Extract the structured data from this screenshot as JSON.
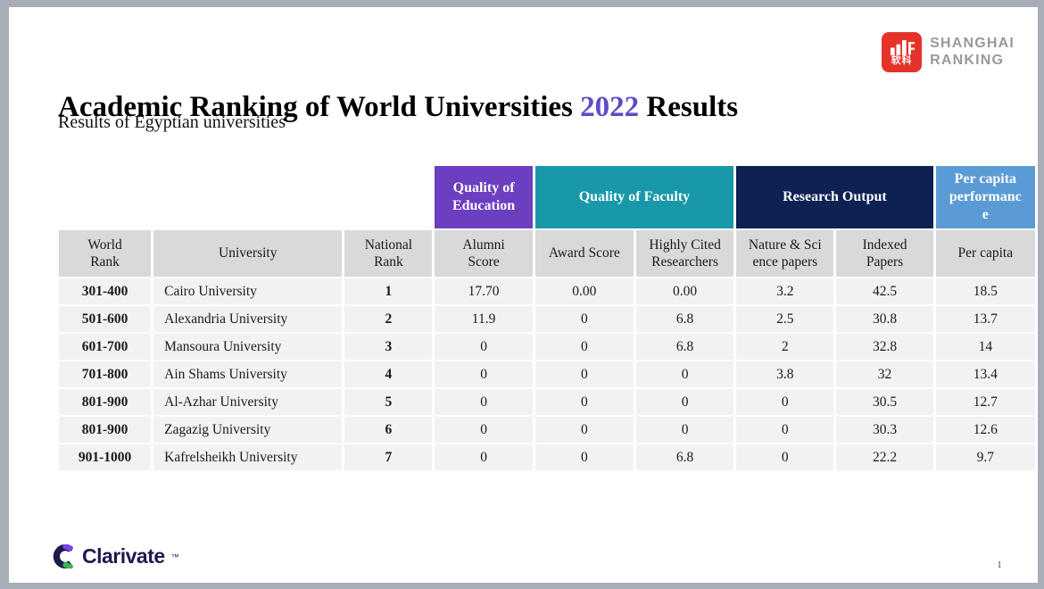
{
  "slide": {
    "title_prefix": "Academic Ranking of World Universities",
    "title_year": "2022",
    "title_suffix": "Results",
    "title_year_color": "#5b4dc9",
    "subtitle": "Results of Egyptian universities",
    "page_number": "1"
  },
  "branding": {
    "shanghai": {
      "line1": "SHANGHAI",
      "line2": "RANKING",
      "badge_text": "软科",
      "badge_color": "#e5332c",
      "text_color": "#97999b"
    },
    "clarivate": {
      "name": "Clarivate",
      "tm": "™",
      "navy": "#1c1a4e",
      "purple": "#7d41f5",
      "green": "#3bb54a"
    }
  },
  "table": {
    "group_headers": [
      {
        "label": "Quality of\nEducation",
        "color": "#6b3fc0",
        "span": 1
      },
      {
        "label": "Quality of Faculty",
        "color": "#1898a8",
        "span": 2
      },
      {
        "label": "Research Output",
        "color": "#0e2152",
        "span": 2
      },
      {
        "label": "Per capita\nperformanc\ne",
        "color": "#5b9bd5",
        "span": 1
      }
    ],
    "columns": [
      "World\nRank",
      "University",
      "National\nRank",
      "Alumni\nScore",
      "Award Score",
      "Highly Cited\nResearchers",
      "Nature & Sci\nence papers",
      "Indexed\nPapers",
      "Per capita"
    ],
    "rows": [
      [
        "301-400",
        "Cairo University",
        "1",
        "17.70",
        "0.00",
        "0.00",
        "3.2",
        "42.5",
        "18.5"
      ],
      [
        "501-600",
        "Alexandria University",
        "2",
        "11.9",
        "0",
        "6.8",
        "2.5",
        "30.8",
        "13.7"
      ],
      [
        "601-700",
        "Mansoura University",
        "3",
        "0",
        "0",
        "6.8",
        "2",
        "32.8",
        "14"
      ],
      [
        "701-800",
        "Ain Shams University",
        "4",
        "0",
        "0",
        "0",
        "3.8",
        "32",
        "13.4"
      ],
      [
        "801-900",
        "Al-Azhar University",
        "5",
        "0",
        "0",
        "0",
        "0",
        "30.5",
        "12.7"
      ],
      [
        "801-900",
        "Zagazig University",
        "6",
        "0",
        "0",
        "0",
        "0",
        "30.3",
        "12.6"
      ],
      [
        "901-1000",
        "Kafrelsheikh University",
        "7",
        "0",
        "0",
        "6.8",
        "0",
        "22.2",
        "9.7"
      ]
    ],
    "colors": {
      "header_bg": "#d9d9d9",
      "row_bg": "#f2f2f2"
    }
  }
}
